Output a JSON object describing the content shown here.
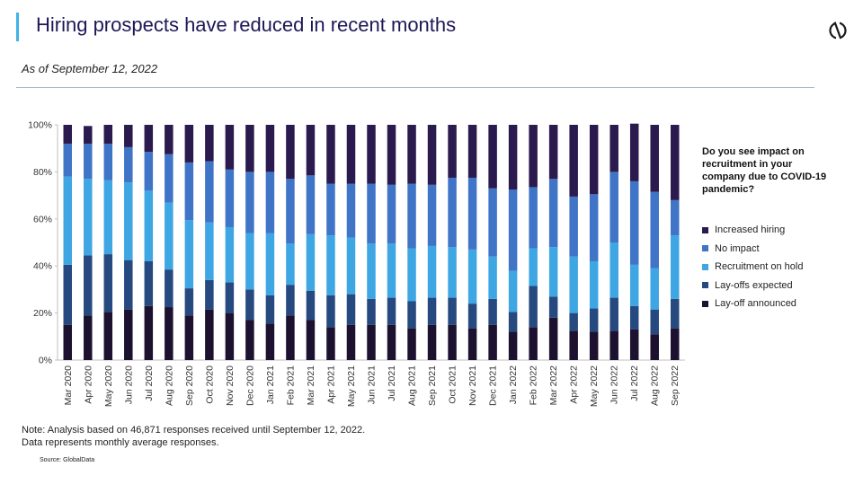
{
  "header": {
    "title": "Hiring prospects have reduced in recent months",
    "subtitle": "As of September 12, 2022",
    "logo_icon": "globaldata-logo-icon"
  },
  "legend": {
    "title": "Do you see impact on recruitment in your company due to COVID-19 pandemic?",
    "items": [
      {
        "label": "Increased hiring",
        "color": "#2b1a4d"
      },
      {
        "label": "No impact",
        "color": "#3f74c7"
      },
      {
        "label": "Recruitment on hold",
        "color": "#3ea6e3"
      },
      {
        "label": "Lay-offs expected",
        "color": "#264a7f"
      },
      {
        "label": "Lay-off announced",
        "color": "#1c1230"
      }
    ]
  },
  "footer": {
    "note_line1": "Note: Analysis based on 46,871 responses received until September 12, 2022.",
    "note_line2": "Data represents monthly average responses.",
    "source": "Source: GlobalData"
  },
  "chart_data": {
    "type": "bar",
    "stacked": true,
    "title": "",
    "xlabel": "",
    "ylabel": "",
    "ylim": [
      0,
      100
    ],
    "y_ticks": [
      "0%",
      "20%",
      "40%",
      "60%",
      "80%",
      "100%"
    ],
    "grid": false,
    "legend_position": "right",
    "categories": [
      "Mar 2020",
      "Apr 2020",
      "May 2020",
      "Jun 2020",
      "Jul 2020",
      "Aug 2020",
      "Sep 2020",
      "Oct 2020",
      "Nov 2020",
      "Dec 2020",
      "Jan 2021",
      "Feb 2021",
      "Mar 2021",
      "Apr 2021",
      "May 2021",
      "Jun 2021",
      "Jul 2021",
      "Aug 2021",
      "Sep 2021",
      "Oct 2021",
      "Nov 2021",
      "Dec 2021",
      "Jan 2022",
      "Feb 2022",
      "Mar 2022",
      "Apr 2022",
      "May 2022",
      "Jun 2022",
      "Jul 2022",
      "Aug 2022",
      "Sep 2022"
    ],
    "series": [
      {
        "name": "Lay-off announced",
        "color": "#1c1230",
        "values": [
          15,
          19,
          20.5,
          21.5,
          23,
          22.5,
          19,
          21.5,
          20,
          17,
          15.5,
          19,
          17,
          14,
          15,
          15,
          15,
          13.5,
          15,
          15,
          13.5,
          15,
          12,
          14,
          18,
          12.5,
          12,
          12.5,
          13,
          11,
          13.5
        ]
      },
      {
        "name": "Lay-offs expected",
        "color": "#264a7f",
        "values": [
          25.5,
          25.5,
          24.5,
          21,
          19,
          16,
          11.5,
          12.5,
          13,
          13,
          12,
          13,
          12.5,
          13.5,
          13,
          11,
          11.5,
          11.5,
          11.5,
          11.5,
          10.5,
          11,
          8.5,
          17.5,
          9,
          7.5,
          10,
          14,
          10,
          10.5,
          12.5
        ]
      },
      {
        "name": "Recruitment on hold",
        "color": "#3ea6e3",
        "values": [
          37.5,
          32.5,
          31.5,
          33,
          30,
          28.5,
          29,
          24.5,
          23.5,
          24,
          26.5,
          17.5,
          24,
          25.5,
          24,
          23.5,
          23,
          22.5,
          22,
          21.5,
          23,
          18,
          17.5,
          16,
          21,
          24,
          20,
          23.5,
          17.5,
          17.5,
          27
        ]
      },
      {
        "name": "No impact",
        "color": "#3f74c7",
        "values": [
          14,
          15,
          15.5,
          15,
          16.5,
          20.5,
          24.5,
          26,
          24.5,
          26,
          26,
          27.5,
          25,
          22,
          23,
          25.5,
          25,
          27.5,
          26,
          29.5,
          30.5,
          29,
          34.5,
          26,
          29,
          25.5,
          28.5,
          30,
          35.5,
          32.5,
          15
        ]
      },
      {
        "name": "Increased hiring",
        "color": "#2b1a4d",
        "values": [
          8,
          7.5,
          8,
          9.5,
          11.5,
          12.5,
          16,
          15.5,
          19,
          20,
          20,
          23,
          21.5,
          25,
          25,
          25,
          25.5,
          25,
          25.5,
          22.5,
          22.5,
          27,
          27.5,
          26.5,
          23,
          30.5,
          29.5,
          20,
          24.5,
          28.5,
          32
        ]
      }
    ]
  }
}
